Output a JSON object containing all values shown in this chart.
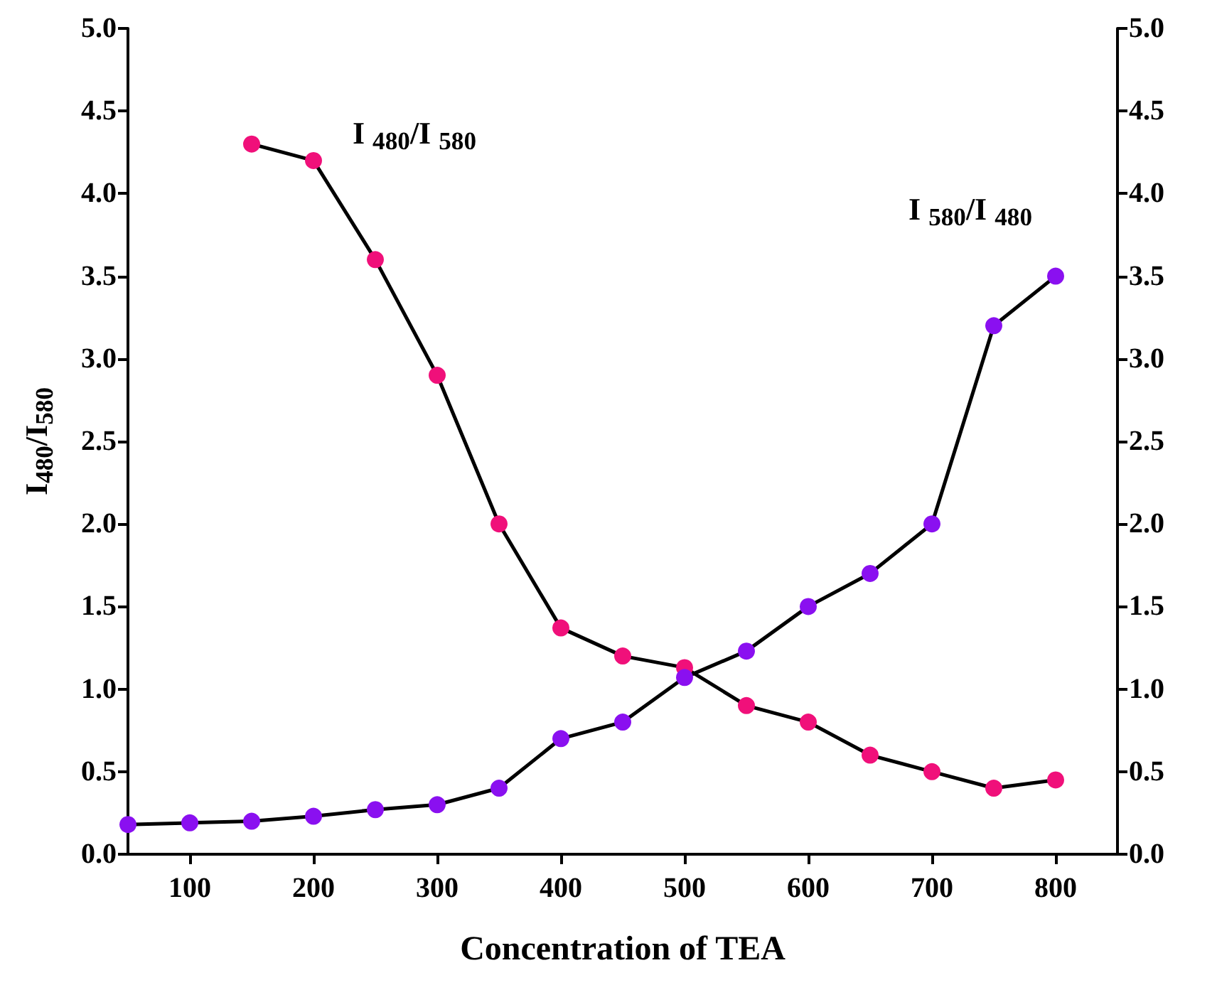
{
  "chart_data": {
    "type": "line",
    "xlabel": "Concentration of TEA",
    "ylabel": "I$_{480}$/I$_{580}$",
    "xlim": [
      50,
      850
    ],
    "xticks": [
      100,
      200,
      300,
      400,
      500,
      600,
      700,
      800
    ],
    "ylim": [
      0,
      5
    ],
    "yticks": [
      {
        "value": 0,
        "label": "0.0"
      },
      0.5,
      {
        "value": 1,
        "label": "1.0"
      },
      1.5,
      {
        "value": 2,
        "label": "2.0"
      },
      2.5,
      {
        "value": 3,
        "label": "3.0"
      },
      3.5,
      {
        "value": 4,
        "label": "4.0"
      },
      4.5,
      {
        "value": 5,
        "label": "5.0"
      }
    ],
    "y2lim": [
      0,
      5
    ],
    "y2ticks": [
      {
        "value": 0,
        "label": "0.0"
      },
      0.5,
      {
        "value": 1,
        "label": "1.0"
      },
      1.5,
      {
        "value": 2,
        "label": "2.0"
      },
      2.5,
      {
        "value": 3,
        "label": "3.0"
      },
      3.5,
      {
        "value": 4,
        "label": "4.0"
      },
      4.5,
      {
        "value": 5,
        "label": "5.0"
      }
    ],
    "marker": "circle",
    "line_style": "solid",
    "grid": false,
    "legend": false,
    "series": [
      {
        "name": "I $_{480}$/I $_{580}$",
        "color": "#f0107a",
        "x": [
          150,
          200,
          250,
          300,
          350,
          400,
          450,
          500,
          550,
          600,
          650,
          700,
          750,
          800
        ],
        "values": [
          4.3,
          4.2,
          3.6,
          2.9,
          2.0,
          1.37,
          1.2,
          1.13,
          0.9,
          0.8,
          0.6,
          0.5,
          0.4,
          0.45
        ]
      },
      {
        "name": "I $_{580}$/I $_{480}$",
        "color": "#8a10f0",
        "x": [
          50,
          100,
          150,
          200,
          250,
          300,
          350,
          400,
          450,
          500,
          550,
          600,
          650,
          700,
          750,
          800
        ],
        "values": [
          0.18,
          0.19,
          0.2,
          0.23,
          0.27,
          0.3,
          0.4,
          0.7,
          0.8,
          1.07,
          1.23,
          1.5,
          1.7,
          2.0,
          3.2,
          3.5
        ]
      }
    ]
  }
}
